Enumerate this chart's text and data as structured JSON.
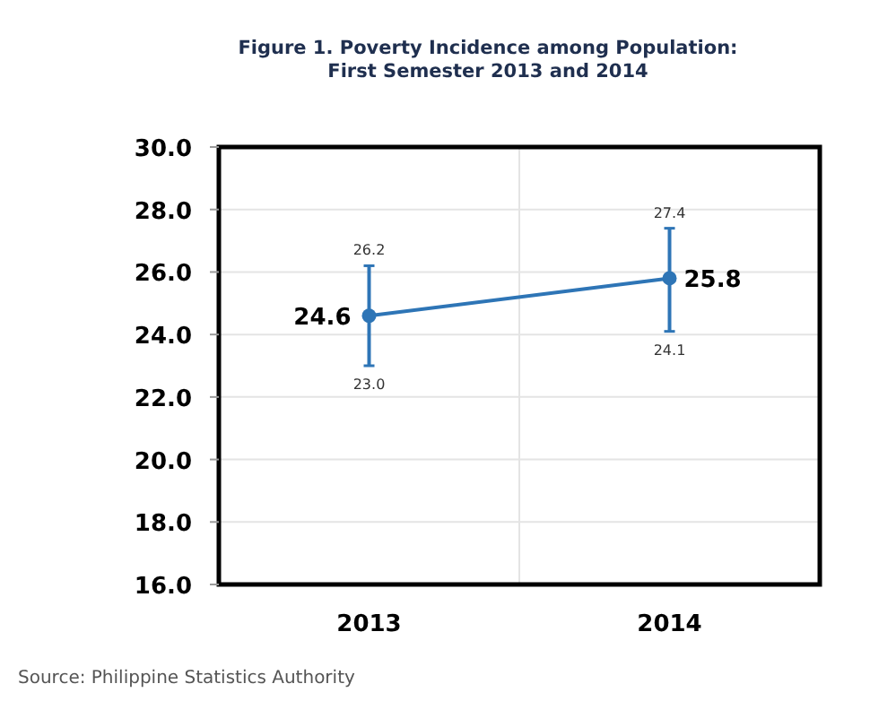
{
  "chart_data": {
    "type": "line",
    "title": "Figure 1. Poverty Incidence among Population:\nFirst Semester 2013 and 2014",
    "categories": [
      "2013",
      "2014"
    ],
    "series": [
      {
        "color": "#2e75b6",
        "values": [
          24.6,
          25.8
        ],
        "errors": [
          [
            23.0,
            26.2
          ],
          [
            24.1,
            27.4
          ]
        ]
      }
    ],
    "data_labels": true,
    "marker": "circle",
    "grid": true,
    "ylim": [
      16,
      30
    ],
    "yticks": [
      {
        "value": 16,
        "label": "16.0"
      },
      {
        "value": 18,
        "label": "18.0"
      },
      {
        "value": 20,
        "label": "20.0"
      },
      {
        "value": 22,
        "label": "22.0"
      },
      {
        "value": 24,
        "label": "24.0"
      },
      {
        "value": 26,
        "label": "26.0"
      },
      {
        "value": 28,
        "label": "28.0"
      },
      {
        "value": 30,
        "label": "30.0"
      }
    ],
    "annotations": [
      {
        "text": "23.0",
        "x": "2013",
        "y": 23.0
      },
      {
        "text": "26.2",
        "x": "2013",
        "y": 26.2
      },
      {
        "text": "24.1",
        "x": "2014",
        "y": 24.1
      },
      {
        "text": "27.4",
        "x": "2014",
        "y": 27.4
      },
      "Source: Philippine Statistics Authority"
    ]
  }
}
